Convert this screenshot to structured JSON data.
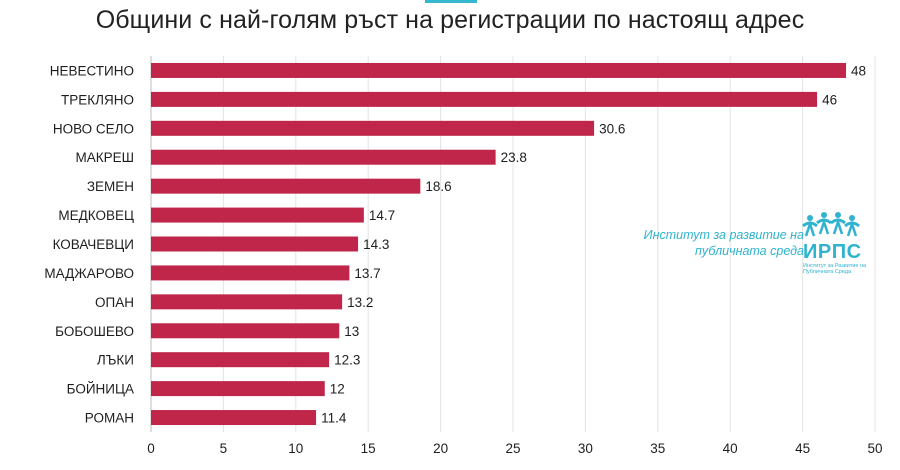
{
  "chart_data": {
    "type": "bar",
    "orientation": "horizontal",
    "title": "Общини с най-голям ръст на регистрации по настоящ адрес",
    "categories": [
      "НЕВЕСТИНО",
      "ТРЕКЛЯНО",
      "НОВО СЕЛО",
      "МАКРЕШ",
      "ЗЕМЕН",
      "МЕДКОВЕЦ",
      "КОВАЧЕВЦИ",
      "МАДЖАРОВО",
      "ОПАН",
      "БОБОШЕВО",
      "ЛЪКИ",
      "БОЙНИЦА",
      "РОМАН"
    ],
    "values": [
      48,
      46,
      30.6,
      23.8,
      18.6,
      14.7,
      14.3,
      13.7,
      13.2,
      13,
      12.3,
      12,
      11.4
    ],
    "value_labels": [
      "48",
      "46",
      "30.6",
      "23.8",
      "18.6",
      "14.7",
      "14.3",
      "13.7",
      "13.2",
      "13",
      "12.3",
      "12",
      "11.4"
    ],
    "xlim": [
      0,
      50
    ],
    "ticks": [
      "0",
      "5",
      "10",
      "15",
      "20",
      "25",
      "30",
      "35",
      "40",
      "45",
      "50"
    ],
    "bar_color": "#c0264a",
    "grid": true,
    "legend": "none"
  },
  "logo": {
    "line1": "Институт за развитие на",
    "line2": "публичната среда",
    "abbr": "ИРПС",
    "subline": "Институт за Развитие на Публичната Среда",
    "color": "#2fb3cf",
    "icon": "people-figures-logo-icon"
  }
}
